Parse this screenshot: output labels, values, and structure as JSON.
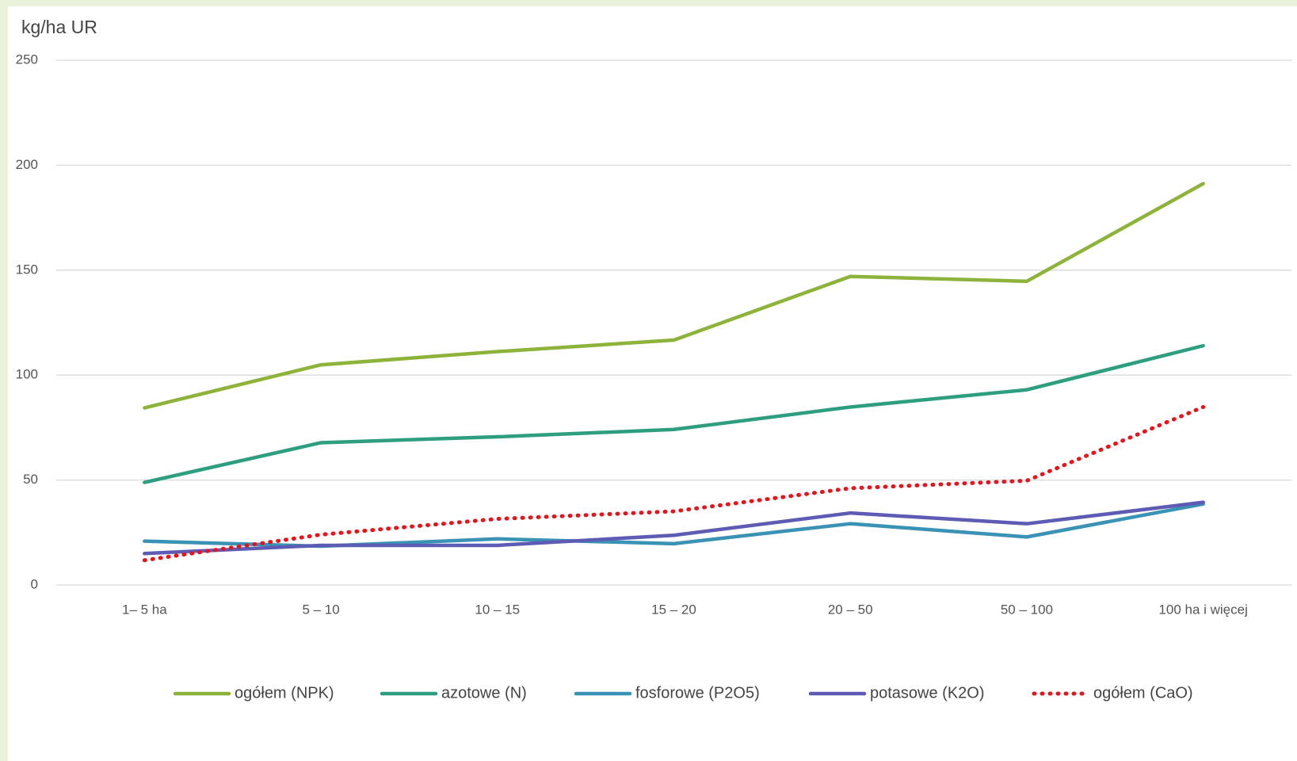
{
  "chart_data": {
    "type": "line",
    "ylabel": "kg/ha UR",
    "categories": [
      "1– 5 ha",
      "5 – 10",
      "10 – 15",
      "15 – 20",
      "20 – 50",
      "50 – 100",
      "100 ha i więcej"
    ],
    "series": [
      {
        "name": "ogółem (NPK)",
        "color": "#8db33a",
        "style": "solid",
        "values": [
          84.4,
          104.9,
          111.2,
          116.7,
          147.0,
          144.7,
          191.2
        ]
      },
      {
        "name": "azotowe (N)",
        "color": "#2e9e80",
        "style": "solid",
        "values": [
          48.9,
          67.8,
          70.6,
          74.1,
          84.8,
          93.0,
          114.0
        ]
      },
      {
        "name": "fosforowe (P2O5)",
        "color": "#3a93b5",
        "style": "solid",
        "values": [
          20.9,
          18.5,
          22.0,
          19.7,
          29.2,
          22.9,
          38.6
        ]
      },
      {
        "name": "potasowe (K2O)",
        "color": "#5e5bb5",
        "style": "solid",
        "values": [
          15.0,
          18.9,
          18.9,
          23.7,
          34.3,
          29.2,
          39.4
        ]
      },
      {
        "name": "ogółem (CaO)",
        "color": "#e8141b",
        "style": "dotted",
        "values": [
          11.8,
          24.0,
          31.5,
          35.1,
          46.1,
          49.7,
          84.8
        ]
      }
    ],
    "ylim": [
      0,
      250
    ],
    "yticks": [
      0,
      50,
      100,
      150,
      200,
      250
    ],
    "grid": true,
    "legend": "bottom"
  }
}
